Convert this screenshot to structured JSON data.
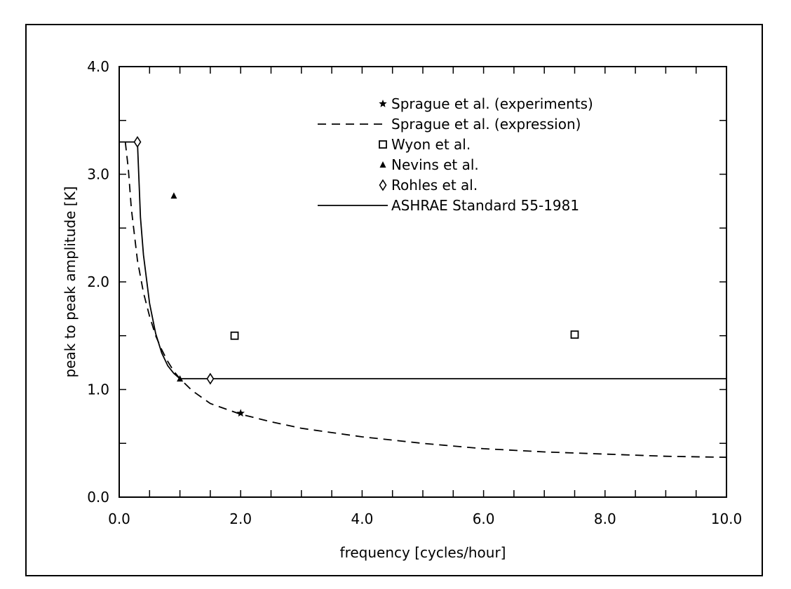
{
  "chart_data": {
    "type": "scatter",
    "title": "",
    "xlabel": "frequency [cycles/hour]",
    "ylabel": "peak to peak amplitude [K]",
    "xlim": [
      0.0,
      10.0
    ],
    "ylim": [
      0.0,
      4.0
    ],
    "x_ticks": [
      "0.0",
      "2.0",
      "4.0",
      "6.0",
      "8.0",
      "10.0"
    ],
    "y_ticks": [
      "0.0",
      "1.0",
      "2.0",
      "3.0",
      "4.0"
    ],
    "x_tick_values": [
      0,
      2,
      4,
      6,
      8,
      10
    ],
    "y_tick_values": [
      0,
      1,
      2,
      3,
      4
    ],
    "grid": false,
    "legend_position": "top-right",
    "series": [
      {
        "name": "Sprague et al. (experiments)",
        "kind": "markers",
        "marker": "star",
        "points": [
          [
            2.0,
            0.78
          ]
        ]
      },
      {
        "name": "Sprague et al. (expression)",
        "kind": "line",
        "line_style": "dashed",
        "points": [
          [
            0.1,
            3.3
          ],
          [
            0.15,
            3.05
          ],
          [
            0.2,
            2.68
          ],
          [
            0.3,
            2.2
          ],
          [
            0.4,
            1.9
          ],
          [
            0.5,
            1.68
          ],
          [
            0.6,
            1.5
          ],
          [
            0.7,
            1.37
          ],
          [
            0.8,
            1.26
          ],
          [
            0.9,
            1.17
          ],
          [
            1.0,
            1.1
          ],
          [
            1.2,
            0.99
          ],
          [
            1.5,
            0.87
          ],
          [
            2.0,
            0.77
          ],
          [
            2.5,
            0.7
          ],
          [
            3.0,
            0.64
          ],
          [
            4.0,
            0.56
          ],
          [
            5.0,
            0.5
          ],
          [
            6.0,
            0.45
          ],
          [
            7.0,
            0.42
          ],
          [
            8.0,
            0.4
          ],
          [
            9.0,
            0.38
          ],
          [
            10.0,
            0.37
          ]
        ]
      },
      {
        "name": "Wyon et al.",
        "kind": "markers",
        "marker": "square",
        "points": [
          [
            1.9,
            1.5
          ],
          [
            7.5,
            1.51
          ]
        ]
      },
      {
        "name": "Nevins et al.",
        "kind": "markers",
        "marker": "triangle",
        "points": [
          [
            0.9,
            2.8
          ],
          [
            1.0,
            1.1
          ]
        ]
      },
      {
        "name": "Rohles et al.",
        "kind": "markers",
        "marker": "diamond",
        "points": [
          [
            0.3,
            3.3
          ],
          [
            1.5,
            1.1
          ]
        ]
      },
      {
        "name": "ASHRAE Standard 55-1981",
        "kind": "line",
        "line_style": "solid",
        "points": [
          [
            0.0,
            3.3
          ],
          [
            0.3,
            3.3
          ],
          [
            0.35,
            2.6
          ],
          [
            0.4,
            2.25
          ],
          [
            0.5,
            1.8
          ],
          [
            0.6,
            1.52
          ],
          [
            0.7,
            1.34
          ],
          [
            0.8,
            1.22
          ],
          [
            0.9,
            1.15
          ],
          [
            1.0,
            1.1
          ],
          [
            10.0,
            1.1
          ]
        ]
      }
    ]
  }
}
